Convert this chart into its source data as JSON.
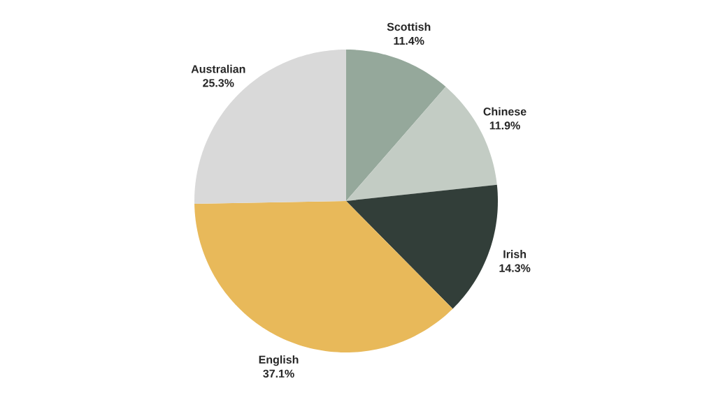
{
  "chart_data": {
    "type": "pie",
    "categories": [
      "Scottish",
      "Chinese",
      "Irish",
      "English",
      "Australian"
    ],
    "values": [
      11.4,
      11.9,
      14.3,
      37.1,
      25.3
    ],
    "value_labels": [
      "11.4%",
      "11.9%",
      "14.3%",
      "37.1%",
      "25.3%"
    ],
    "colors": [
      "#95a89b",
      "#c3ccc4",
      "#323e39",
      "#e8b95a",
      "#d9d9d9"
    ]
  }
}
